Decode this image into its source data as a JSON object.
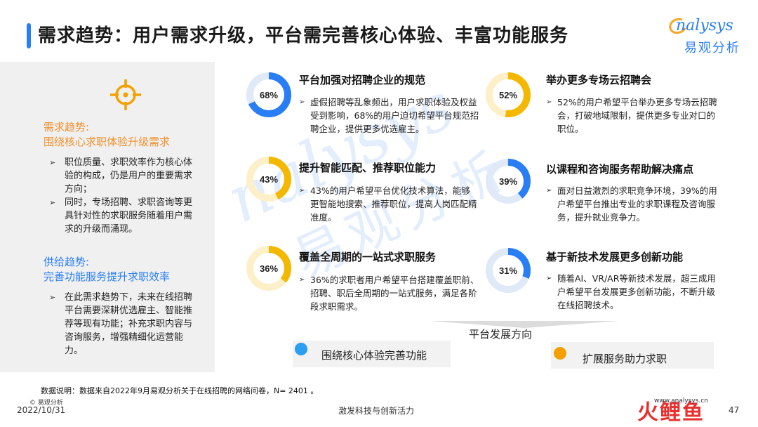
{
  "header": {
    "title": "需求趋势：用户需求升级，平台需完善核心体验、丰富功能服务",
    "logo_en": "nalysys",
    "logo_cn": "易观分析"
  },
  "left_panel": {
    "demand_heading_1": "需求趋势:",
    "demand_heading_2": "围绕核心求职体验升级需求",
    "demand_bullets": [
      "职位质量、求职效率作为核心体验的构成，仍是用户的重要需求方向；",
      "同时，专场招聘、求职咨询等更具针对性的求职服务随着用户需求的升级而涌现。"
    ],
    "supply_heading_1": "供给趋势:",
    "supply_heading_2": "完善功能服务提升求职效率",
    "supply_bullets": [
      "在此需求趋势下，未来在线招聘平台需要深耕优选雇主、智能推荐等现有功能；补充求职内容与咨询服务，增强精细化运营能力。"
    ]
  },
  "items": [
    {
      "pct_label": "68%",
      "value": 68,
      "color": "#2a7ef5",
      "title": "平台加强对招聘企业的规范",
      "desc": "虚假招聘等乱象频出，用户求职体验及权益受到影响，68%的用户迫切希望平台规范招聘企业，提供更多优选雇主。"
    },
    {
      "pct_label": "43%",
      "value": 43,
      "color": "#f5b800",
      "title": "提升智能匹配、推荐职位能力",
      "desc": "43%的用户希望平台优化技术算法，能够更智能地搜索、推荐职位，提高人岗匹配精准度。"
    },
    {
      "pct_label": "36%",
      "value": 36,
      "color": "#f5b800",
      "title": "覆盖全周期的一站式求职服务",
      "desc": "36%的求职者用户希望平台搭建覆盖职前、招聘、职后全周期的一站式服务，满足各阶段求职需求。"
    },
    {
      "pct_label": "52%",
      "value": 52,
      "color": "#f5b800",
      "title": "举办更多专场云招聘会",
      "desc": "52%的用户希望平台举办更多专场云招聘会，打破地域限制，提供更多专业对口的职位。"
    },
    {
      "pct_label": "39%",
      "value": 39,
      "color": "#2a7ef5",
      "title": "以课程和咨询服务帮助解决痛点",
      "desc": "面对日益激烈的求职竞争环境，39%的用户希望平台推出专业的求职课程及咨询服务，提升就业竞争力。"
    },
    {
      "pct_label": "31%",
      "value": 31,
      "color": "#2a7ef5",
      "title": "基于新技术发展更多创新功能",
      "desc": "随着AI、VR/AR等新技术发展，超三成用户希望平台发展更多创新功能，不断升级在线招聘技术。"
    }
  ],
  "bottom": {
    "direction_label": "平台发展方向",
    "legend_left": "围绕核心体验完善功能",
    "legend_right": "扩展服务助力求职",
    "legend_left_color": "#2a9df4",
    "legend_right_color": "#f5a000"
  },
  "footer": {
    "note": "数据说明：数据来自2022年9月易观分析关于在线招聘的网络问卷，N=  2401 。",
    "copyright": "© 易观分析",
    "date": "2022/10/31",
    "slogan": "激发科技与创新活力",
    "site": "www.analysys.cn",
    "page": "47",
    "brand": "火鲤鱼"
  }
}
